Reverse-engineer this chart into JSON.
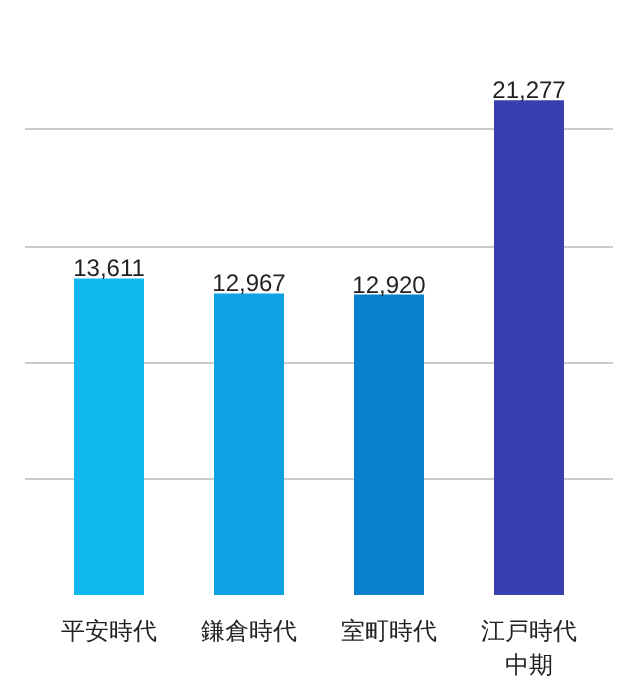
{
  "chart_data": {
    "type": "bar",
    "categories": [
      "平安時代",
      "鎌倉時代",
      "室町時代",
      "江戸時代中期"
    ],
    "values": [
      13611,
      12967,
      12920,
      21277
    ],
    "colors": [
      "#10b8f0",
      "#0ea2e2",
      "#0a7fcc",
      "#3a3fb0"
    ],
    "value_labels": [
      "13,611",
      "12,967",
      "12,920",
      "21,277"
    ],
    "yticks": [
      {
        "value": 5000,
        "label": null
      },
      {
        "value": 10000,
        "label": null
      },
      {
        "value": 15000,
        "label": null
      },
      {
        "value": 20000,
        "label": null
      }
    ],
    "grid": "y",
    "tick_labels": "x"
  }
}
